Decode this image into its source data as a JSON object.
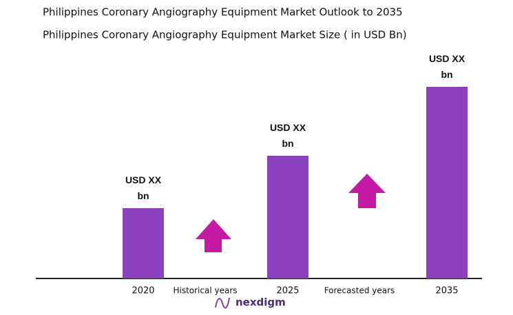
{
  "chart_data": {
    "type": "bar",
    "title": "Philippines Coronary Angiography Equipment  Market Outlook to 2035",
    "subtitle": "Philippines Coronary Angiography Equipment  Market Size  ( in USD Bn)",
    "categories": [
      "2020",
      "2025",
      "2035"
    ],
    "values": [
      102,
      178,
      278
    ],
    "value_labels": [
      "USD XX bn",
      "USD XX bn",
      "USD XX bn"
    ],
    "color": "#8a40bf",
    "ylim": [
      0,
      300
    ],
    "annotations": [
      "Historical years",
      "Forecasted years"
    ]
  },
  "brand": "nexdigm"
}
